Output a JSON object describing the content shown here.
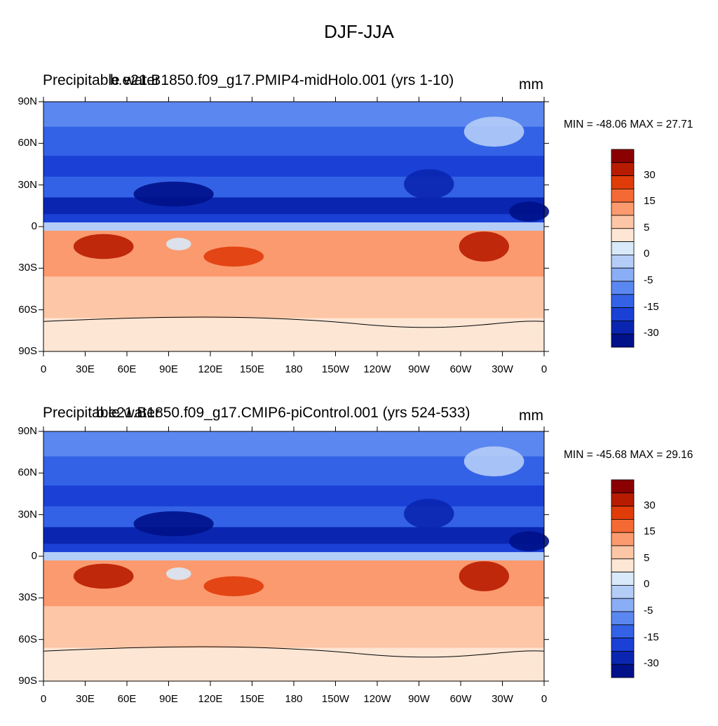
{
  "title": "DJF-JJA",
  "panels": [
    {
      "left_label": "Precipitable water",
      "center_label": "b.e21.B1850.f09_g17.PMIP4-midHolo.001 (yrs 1-10)",
      "units": "mm",
      "stats": "MIN = -48.06 MAX =  27.71"
    },
    {
      "left_label": "Precipitable water",
      "center_label": "b.e21.B1850.f09_g17.CMIP6-piControl.001 (yrs 524-533)",
      "units": "mm",
      "stats": "MIN = -45.68 MAX =  29.16"
    }
  ],
  "lat_ticks": [
    "90N",
    "60N",
    "30N",
    "0",
    "30S",
    "60S",
    "90S"
  ],
  "lon_ticks": [
    "0",
    "30E",
    "60E",
    "90E",
    "120E",
    "150E",
    "180",
    "150W",
    "120W",
    "90W",
    "60W",
    "30W",
    "0"
  ],
  "colorbar": {
    "labels": [
      "30",
      "15",
      "5",
      "0",
      "-5",
      "-15",
      "-30"
    ],
    "colors": [
      "#8b0000",
      "#b81c00",
      "#e03c0a",
      "#f56a34",
      "#fb9a6e",
      "#fdc6a6",
      "#fde6d4",
      "#d8e9fa",
      "#b4cdf7",
      "#8aaef5",
      "#5b87f0",
      "#3362e6",
      "#1a40d6",
      "#0a26b0",
      "#00118a"
    ]
  }
}
